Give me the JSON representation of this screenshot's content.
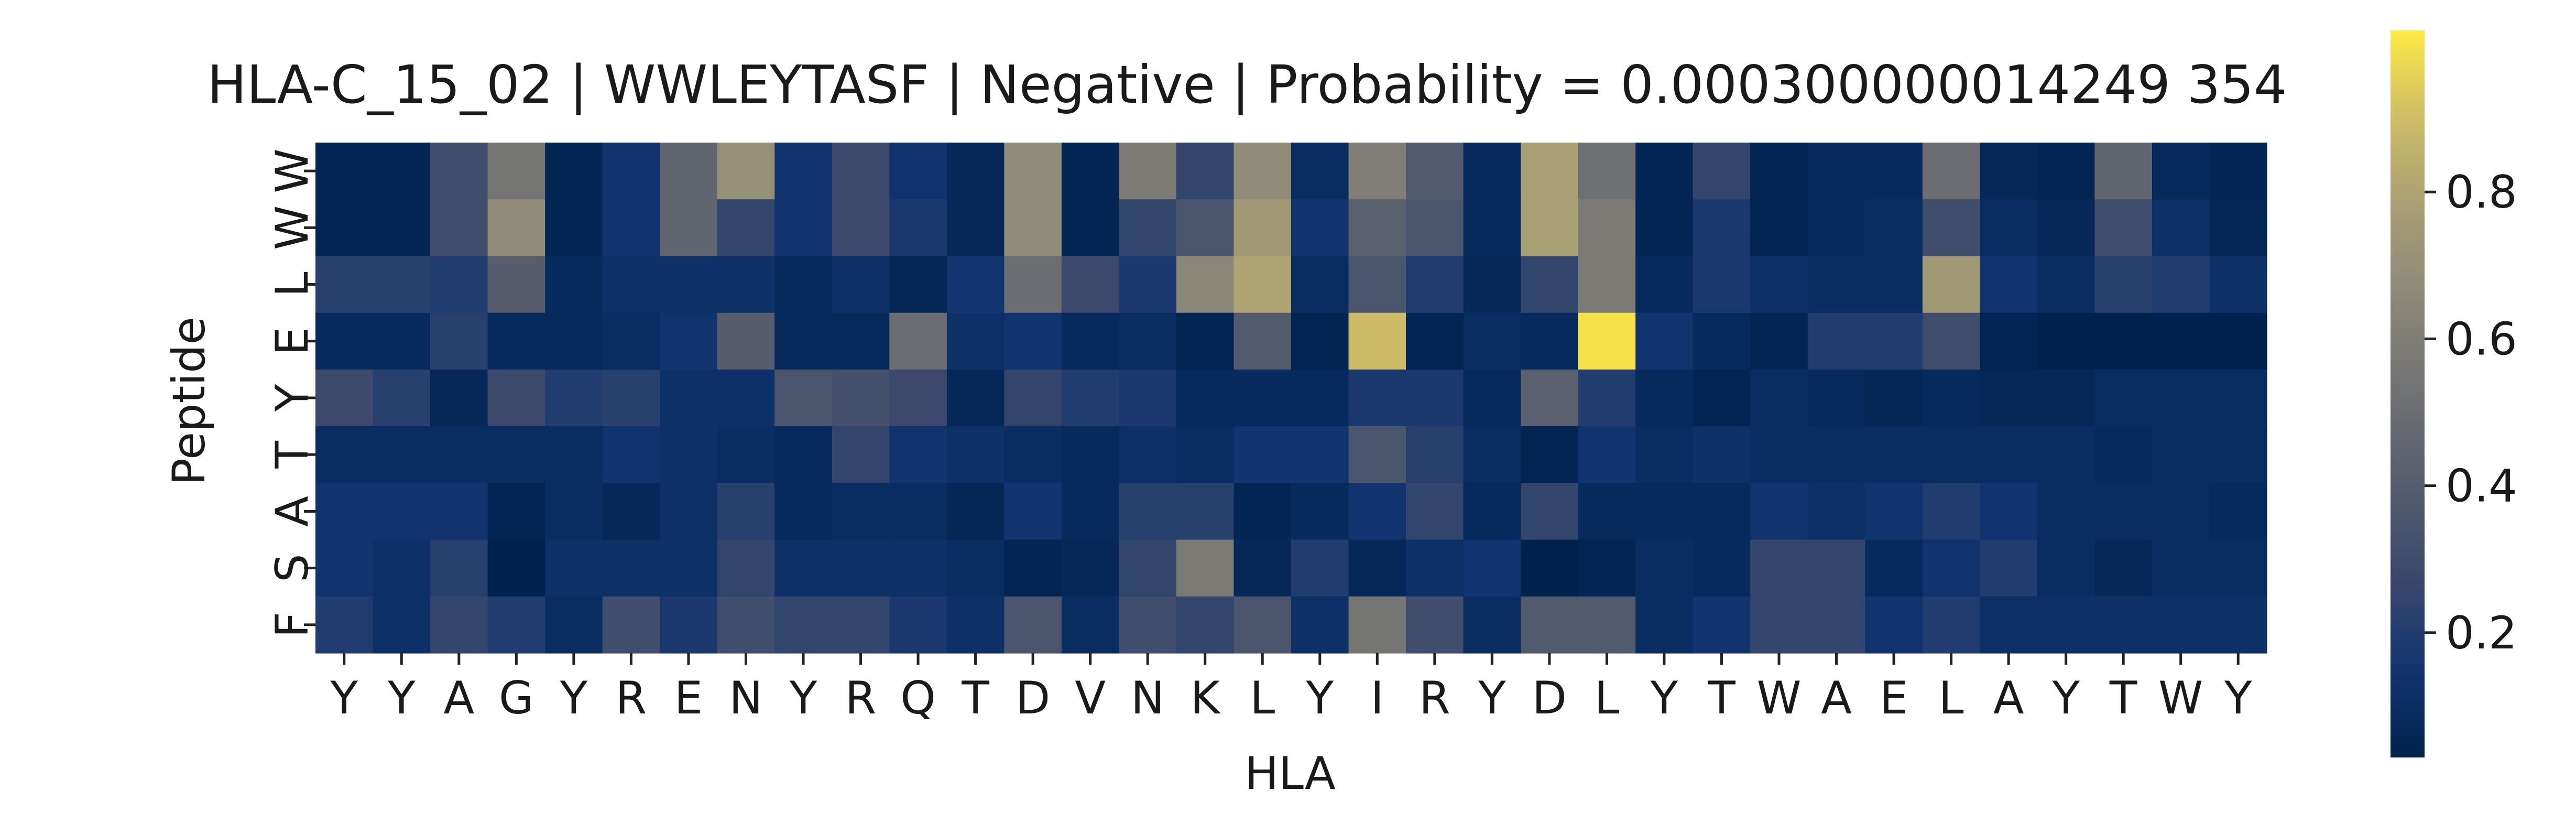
{
  "chart_data": {
    "type": "heatmap",
    "title": "HLA-C_15_02 | WWLEYTASF | Negative | Probability = 0.000300000014249 354",
    "xlabel": "HLA",
    "ylabel": "Peptide",
    "x_categories": [
      "Y",
      "Y",
      "A",
      "G",
      "Y",
      "R",
      "E",
      "N",
      "Y",
      "R",
      "Q",
      "T",
      "D",
      "V",
      "N",
      "K",
      "L",
      "Y",
      "I",
      "R",
      "Y",
      "D",
      "L",
      "Y",
      "T",
      "W",
      "A",
      "E",
      "L",
      "A",
      "Y",
      "T",
      "W",
      "Y"
    ],
    "y_categories": [
      "W",
      "W",
      "L",
      "E",
      "Y",
      "T",
      "A",
      "S",
      "F"
    ],
    "values": [
      [
        0.05,
        0.05,
        0.3,
        0.55,
        0.05,
        0.15,
        0.45,
        0.7,
        0.15,
        0.28,
        0.15,
        0.07,
        0.68,
        0.05,
        0.58,
        0.25,
        0.68,
        0.1,
        0.6,
        0.38,
        0.08,
        0.78,
        0.52,
        0.05,
        0.25,
        0.05,
        0.08,
        0.08,
        0.5,
        0.07,
        0.05,
        0.45,
        0.08,
        0.05
      ],
      [
        0.05,
        0.05,
        0.3,
        0.68,
        0.05,
        0.15,
        0.45,
        0.25,
        0.15,
        0.28,
        0.18,
        0.07,
        0.68,
        0.05,
        0.25,
        0.35,
        0.75,
        0.15,
        0.42,
        0.35,
        0.08,
        0.78,
        0.58,
        0.05,
        0.18,
        0.05,
        0.08,
        0.1,
        0.3,
        0.1,
        0.07,
        0.3,
        0.12,
        0.06
      ],
      [
        0.22,
        0.22,
        0.2,
        0.4,
        0.08,
        0.12,
        0.12,
        0.12,
        0.08,
        0.12,
        0.06,
        0.16,
        0.5,
        0.28,
        0.18,
        0.65,
        0.8,
        0.1,
        0.35,
        0.2,
        0.07,
        0.25,
        0.58,
        0.08,
        0.18,
        0.12,
        0.1,
        0.1,
        0.75,
        0.15,
        0.1,
        0.22,
        0.2,
        0.12
      ],
      [
        0.08,
        0.08,
        0.22,
        0.08,
        0.08,
        0.1,
        0.15,
        0.4,
        0.08,
        0.08,
        0.5,
        0.12,
        0.15,
        0.08,
        0.1,
        0.05,
        0.38,
        0.05,
        0.9,
        0.05,
        0.1,
        0.08,
        1.0,
        0.15,
        0.08,
        0.05,
        0.2,
        0.2,
        0.3,
        0.05,
        0.03,
        0.03,
        0.03,
        0.03
      ],
      [
        0.28,
        0.22,
        0.07,
        0.28,
        0.2,
        0.22,
        0.12,
        0.12,
        0.35,
        0.32,
        0.28,
        0.07,
        0.25,
        0.2,
        0.18,
        0.08,
        0.08,
        0.08,
        0.18,
        0.18,
        0.08,
        0.42,
        0.2,
        0.08,
        0.05,
        0.1,
        0.08,
        0.06,
        0.08,
        0.07,
        0.07,
        0.1,
        0.1,
        0.1
      ],
      [
        0.1,
        0.1,
        0.1,
        0.1,
        0.1,
        0.15,
        0.12,
        0.1,
        0.08,
        0.25,
        0.15,
        0.12,
        0.1,
        0.08,
        0.12,
        0.1,
        0.15,
        0.15,
        0.35,
        0.22,
        0.1,
        0.05,
        0.15,
        0.1,
        0.12,
        0.1,
        0.1,
        0.1,
        0.1,
        0.1,
        0.1,
        0.08,
        0.1,
        0.1
      ],
      [
        0.15,
        0.15,
        0.15,
        0.05,
        0.1,
        0.07,
        0.12,
        0.22,
        0.08,
        0.1,
        0.1,
        0.06,
        0.15,
        0.08,
        0.22,
        0.22,
        0.05,
        0.08,
        0.15,
        0.25,
        0.08,
        0.25,
        0.08,
        0.08,
        0.08,
        0.15,
        0.12,
        0.15,
        0.2,
        0.15,
        0.1,
        0.1,
        0.1,
        0.08
      ],
      [
        0.15,
        0.12,
        0.22,
        0.03,
        0.12,
        0.12,
        0.12,
        0.25,
        0.12,
        0.12,
        0.12,
        0.1,
        0.05,
        0.07,
        0.25,
        0.58,
        0.07,
        0.2,
        0.07,
        0.12,
        0.15,
        0.03,
        0.05,
        0.1,
        0.08,
        0.25,
        0.25,
        0.08,
        0.15,
        0.2,
        0.1,
        0.07,
        0.1,
        0.1
      ],
      [
        0.2,
        0.12,
        0.25,
        0.2,
        0.1,
        0.3,
        0.18,
        0.3,
        0.25,
        0.25,
        0.18,
        0.12,
        0.35,
        0.1,
        0.3,
        0.25,
        0.35,
        0.12,
        0.55,
        0.3,
        0.1,
        0.38,
        0.38,
        0.1,
        0.15,
        0.25,
        0.25,
        0.15,
        0.2,
        0.12,
        0.12,
        0.12,
        0.12,
        0.12
      ]
    ],
    "colorbar": {
      "colormap": "cividis",
      "range": [
        0.03,
        1.02
      ],
      "ticks": [
        0.2,
        0.4,
        0.6,
        0.8
      ],
      "tick_labels": [
        "0.2",
        "0.4",
        "0.6",
        "0.8"
      ]
    },
    "grid": false,
    "legend": "none"
  }
}
